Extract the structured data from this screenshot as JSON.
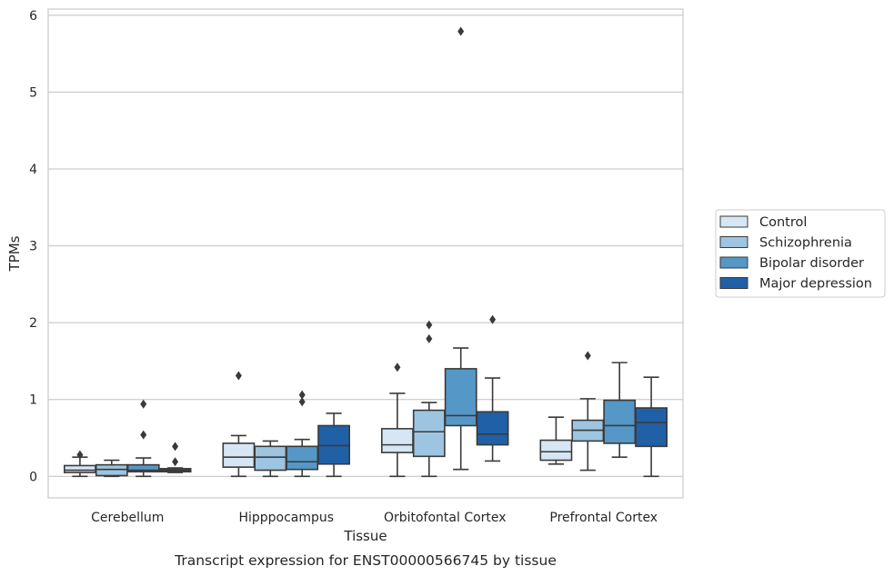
{
  "caption": "Transcript expression for ENST00000566745 by tissue",
  "chart_data": {
    "type": "box",
    "xlabel": "Tissue",
    "ylabel": "TPMs",
    "ylim": [
      -0.28,
      6.08
    ],
    "yticks": [
      0,
      1,
      2,
      3,
      4,
      5,
      6
    ],
    "grid": "horizontal",
    "legend_position": "right",
    "categories": [
      "Cerebellum",
      "Hipppocampus",
      "Orbitofontal Cortex",
      "Prefrontal Cortex"
    ],
    "series": [
      {
        "name": "Control",
        "color": "#d6e6f4",
        "boxes": [
          {
            "whislo": 0.0,
            "q1": 0.05,
            "med": 0.08,
            "q3": 0.14,
            "whishi": 0.25,
            "fliers": [
              0.28
            ]
          },
          {
            "whislo": 0.0,
            "q1": 0.12,
            "med": 0.25,
            "q3": 0.43,
            "whishi": 0.53,
            "fliers": [
              1.31
            ]
          },
          {
            "whislo": 0.0,
            "q1": 0.31,
            "med": 0.41,
            "q3": 0.62,
            "whishi": 1.08,
            "fliers": [
              1.42
            ]
          },
          {
            "whislo": 0.16,
            "q1": 0.21,
            "med": 0.32,
            "q3": 0.47,
            "whishi": 0.77,
            "fliers": []
          }
        ]
      },
      {
        "name": "Schizophrenia",
        "color": "#9dc5e1",
        "boxes": [
          {
            "whislo": 0.0,
            "q1": 0.01,
            "med": 0.09,
            "q3": 0.15,
            "whishi": 0.21,
            "fliers": []
          },
          {
            "whislo": 0.0,
            "q1": 0.08,
            "med": 0.25,
            "q3": 0.39,
            "whishi": 0.46,
            "fliers": []
          },
          {
            "whislo": 0.0,
            "q1": 0.26,
            "med": 0.58,
            "q3": 0.86,
            "whishi": 0.96,
            "fliers": [
              1.79,
              1.97
            ]
          },
          {
            "whislo": 0.08,
            "q1": 0.46,
            "med": 0.6,
            "q3": 0.73,
            "whishi": 1.01,
            "fliers": [
              1.57
            ]
          }
        ]
      },
      {
        "name": "Bipolar disorder",
        "color": "#5597c6",
        "boxes": [
          {
            "whislo": 0.0,
            "q1": 0.06,
            "med": 0.08,
            "q3": 0.15,
            "whishi": 0.24,
            "fliers": [
              0.54,
              0.94
            ]
          },
          {
            "whislo": 0.0,
            "q1": 0.09,
            "med": 0.19,
            "q3": 0.39,
            "whishi": 0.48,
            "fliers": [
              0.97,
              1.06
            ]
          },
          {
            "whislo": 0.09,
            "q1": 0.66,
            "med": 0.79,
            "q3": 1.4,
            "whishi": 1.67,
            "fliers": [
              5.79
            ]
          },
          {
            "whislo": 0.25,
            "q1": 0.43,
            "med": 0.66,
            "q3": 0.99,
            "whishi": 1.48,
            "fliers": []
          }
        ]
      },
      {
        "name": "Major depression",
        "color": "#2060a7",
        "boxes": [
          {
            "whislo": 0.05,
            "q1": 0.06,
            "med": 0.08,
            "q3": 0.1,
            "whishi": 0.11,
            "fliers": [
              0.19,
              0.39
            ]
          },
          {
            "whislo": 0.0,
            "q1": 0.16,
            "med": 0.4,
            "q3": 0.66,
            "whishi": 0.82,
            "fliers": []
          },
          {
            "whislo": 0.2,
            "q1": 0.41,
            "med": 0.55,
            "q3": 0.84,
            "whishi": 1.28,
            "fliers": [
              2.04
            ]
          },
          {
            "whislo": 0.0,
            "q1": 0.39,
            "med": 0.7,
            "q3": 0.89,
            "whishi": 1.29,
            "fliers": []
          }
        ]
      }
    ]
  }
}
